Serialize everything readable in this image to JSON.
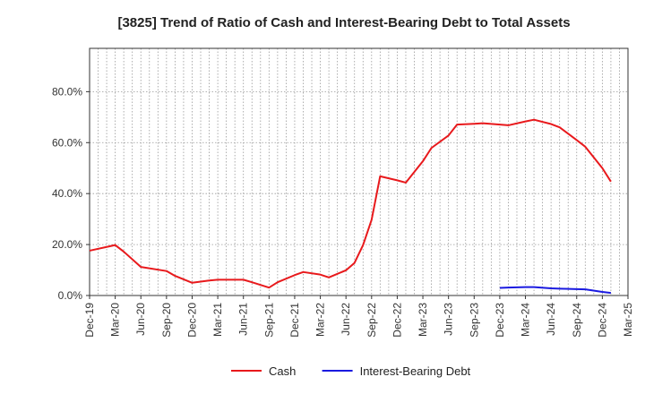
{
  "chart_data": {
    "type": "line",
    "title": "[3825]  Trend of Ratio of Cash and Interest-Bearing Debt to Total Assets",
    "xlabel": "",
    "ylabel": "",
    "ylim": [
      0,
      97
    ],
    "grid": true,
    "legend_position": "bottom",
    "x_ticks": [
      "Dec-19",
      "Mar-20",
      "Jun-20",
      "Sep-20",
      "Dec-20",
      "Mar-21",
      "Jun-21",
      "Sep-21",
      "Dec-21",
      "Mar-22",
      "Jun-22",
      "Sep-22",
      "Dec-22",
      "Mar-23",
      "Jun-23",
      "Sep-23",
      "Dec-23",
      "Mar-24",
      "Jun-24",
      "Sep-24",
      "Dec-24",
      "Mar-25"
    ],
    "y_ticks": [
      {
        "value": 0,
        "label": "0.0%"
      },
      {
        "value": 20,
        "label": "20.0%"
      },
      {
        "value": 40,
        "label": "40.0%"
      },
      {
        "value": 60,
        "label": "60.0%"
      },
      {
        "value": 80,
        "label": "80.0%"
      }
    ],
    "months_per_tick": 3,
    "series": [
      {
        "name": "Cash",
        "color": "#e8191c",
        "points": [
          [
            0,
            17.6
          ],
          [
            3,
            19.8
          ],
          [
            4,
            17.2
          ],
          [
            6,
            11.2
          ],
          [
            9,
            9.6
          ],
          [
            10,
            7.7
          ],
          [
            12,
            5.0
          ],
          [
            14,
            5.9
          ],
          [
            15,
            6.2
          ],
          [
            18,
            6.2
          ],
          [
            19,
            5.2
          ],
          [
            21,
            3.1
          ],
          [
            22,
            5.2
          ],
          [
            24,
            8.0
          ],
          [
            25,
            9.2
          ],
          [
            27,
            8.2
          ],
          [
            28,
            7.1
          ],
          [
            30,
            9.9
          ],
          [
            31,
            12.8
          ],
          [
            32,
            19.8
          ],
          [
            33,
            29.7
          ],
          [
            34,
            46.8
          ],
          [
            36,
            45.2
          ],
          [
            37,
            44.3
          ],
          [
            39,
            52.7
          ],
          [
            40,
            57.9
          ],
          [
            42,
            62.8
          ],
          [
            43,
            67.1
          ],
          [
            45,
            67.4
          ],
          [
            46,
            67.6
          ],
          [
            48,
            67.1
          ],
          [
            49,
            66.8
          ],
          [
            51,
            68.3
          ],
          [
            52,
            69.0
          ],
          [
            54,
            67.3
          ],
          [
            55,
            66.0
          ],
          [
            57,
            61.0
          ],
          [
            58,
            58.4
          ],
          [
            60,
            50.0
          ],
          [
            61,
            44.7
          ]
        ]
      },
      {
        "name": "Interest-Bearing Debt",
        "color": "#1a1ae0",
        "points": [
          [
            48,
            3.0
          ],
          [
            49,
            3.1
          ],
          [
            51,
            3.3
          ],
          [
            52,
            3.3
          ],
          [
            54,
            2.8
          ],
          [
            55,
            2.7
          ],
          [
            57,
            2.5
          ],
          [
            58,
            2.4
          ],
          [
            60,
            1.4
          ],
          [
            61,
            1.0
          ]
        ]
      }
    ]
  }
}
